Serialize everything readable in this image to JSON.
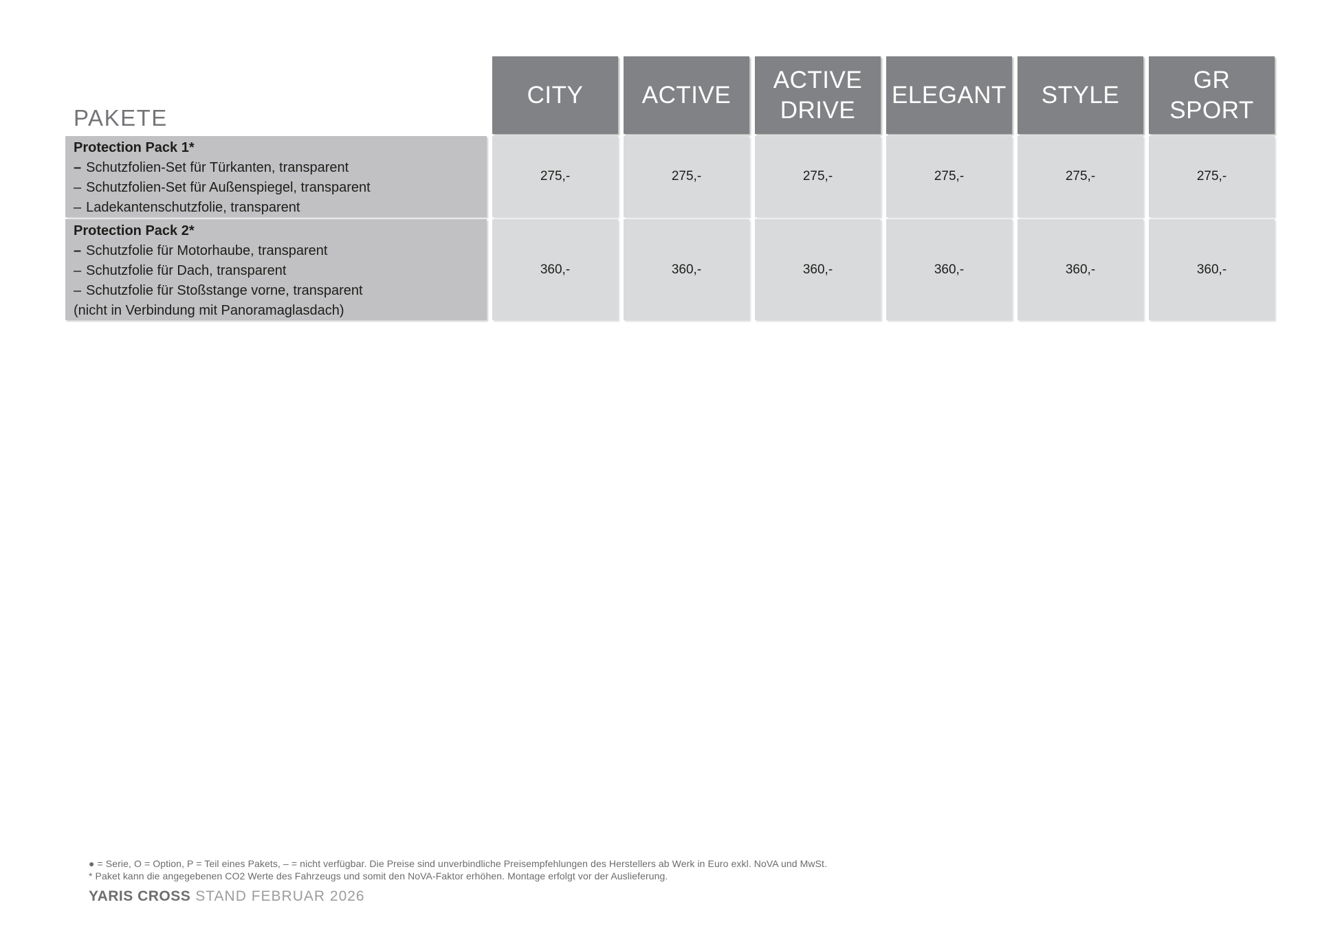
{
  "page": {
    "title": "PAKETE",
    "colors": {
      "header_bg": "#818285",
      "header_text": "#ffffff",
      "row_label_bg": "#c1c1c3",
      "price_cell_bg": "#d9dadb",
      "body_text": "#1d1d1b",
      "muted_text": "#737477"
    }
  },
  "table": {
    "dash": "–",
    "columns": [
      "CITY",
      "ACTIVE",
      "ACTIVE\nDRIVE",
      "ELEGANT",
      "STYLE",
      "GR\nSPORT"
    ],
    "rows": [
      {
        "name": "Protection Pack 1*",
        "items": [
          "Schutzfolien-Set für Türkanten, transparent",
          "Schutzfolien-Set für Außenspiegel, transparent",
          "Ladekantenschutzfolie, transparent"
        ],
        "prices": [
          "275,-",
          "275,-",
          "275,-",
          "275,-",
          "275,-",
          "275,-"
        ]
      },
      {
        "name": "Protection Pack 2*",
        "items": [
          "Schutzfolie für Motorhaube, transparent",
          "Schutzfolie für Dach, transparent",
          "Schutzfolie für Stoßstange vorne, transparent"
        ],
        "note": "(nicht in Verbindung mit Panoramaglasdach)",
        "prices": [
          "360,-",
          "360,-",
          "360,-",
          "360,-",
          "360,-",
          "360,-"
        ]
      }
    ]
  },
  "footer": {
    "legend": "● = Serie, O = Option, P = Teil eines Pakets, – = nicht verfügbar. Die Preise sind unverbindliche Preisempfehlungen des Herstellers ab Werk in Euro exkl. NoVA und MwSt.",
    "note": "* Paket kann die angegebenen CO2 Werte des Fahrzeugs und somit den NoVA-Faktor erhöhen. Montage erfolgt vor der Auslieferung.",
    "model": "YARIS CROSS",
    "stand": "STAND FEBRUAR 2026"
  }
}
